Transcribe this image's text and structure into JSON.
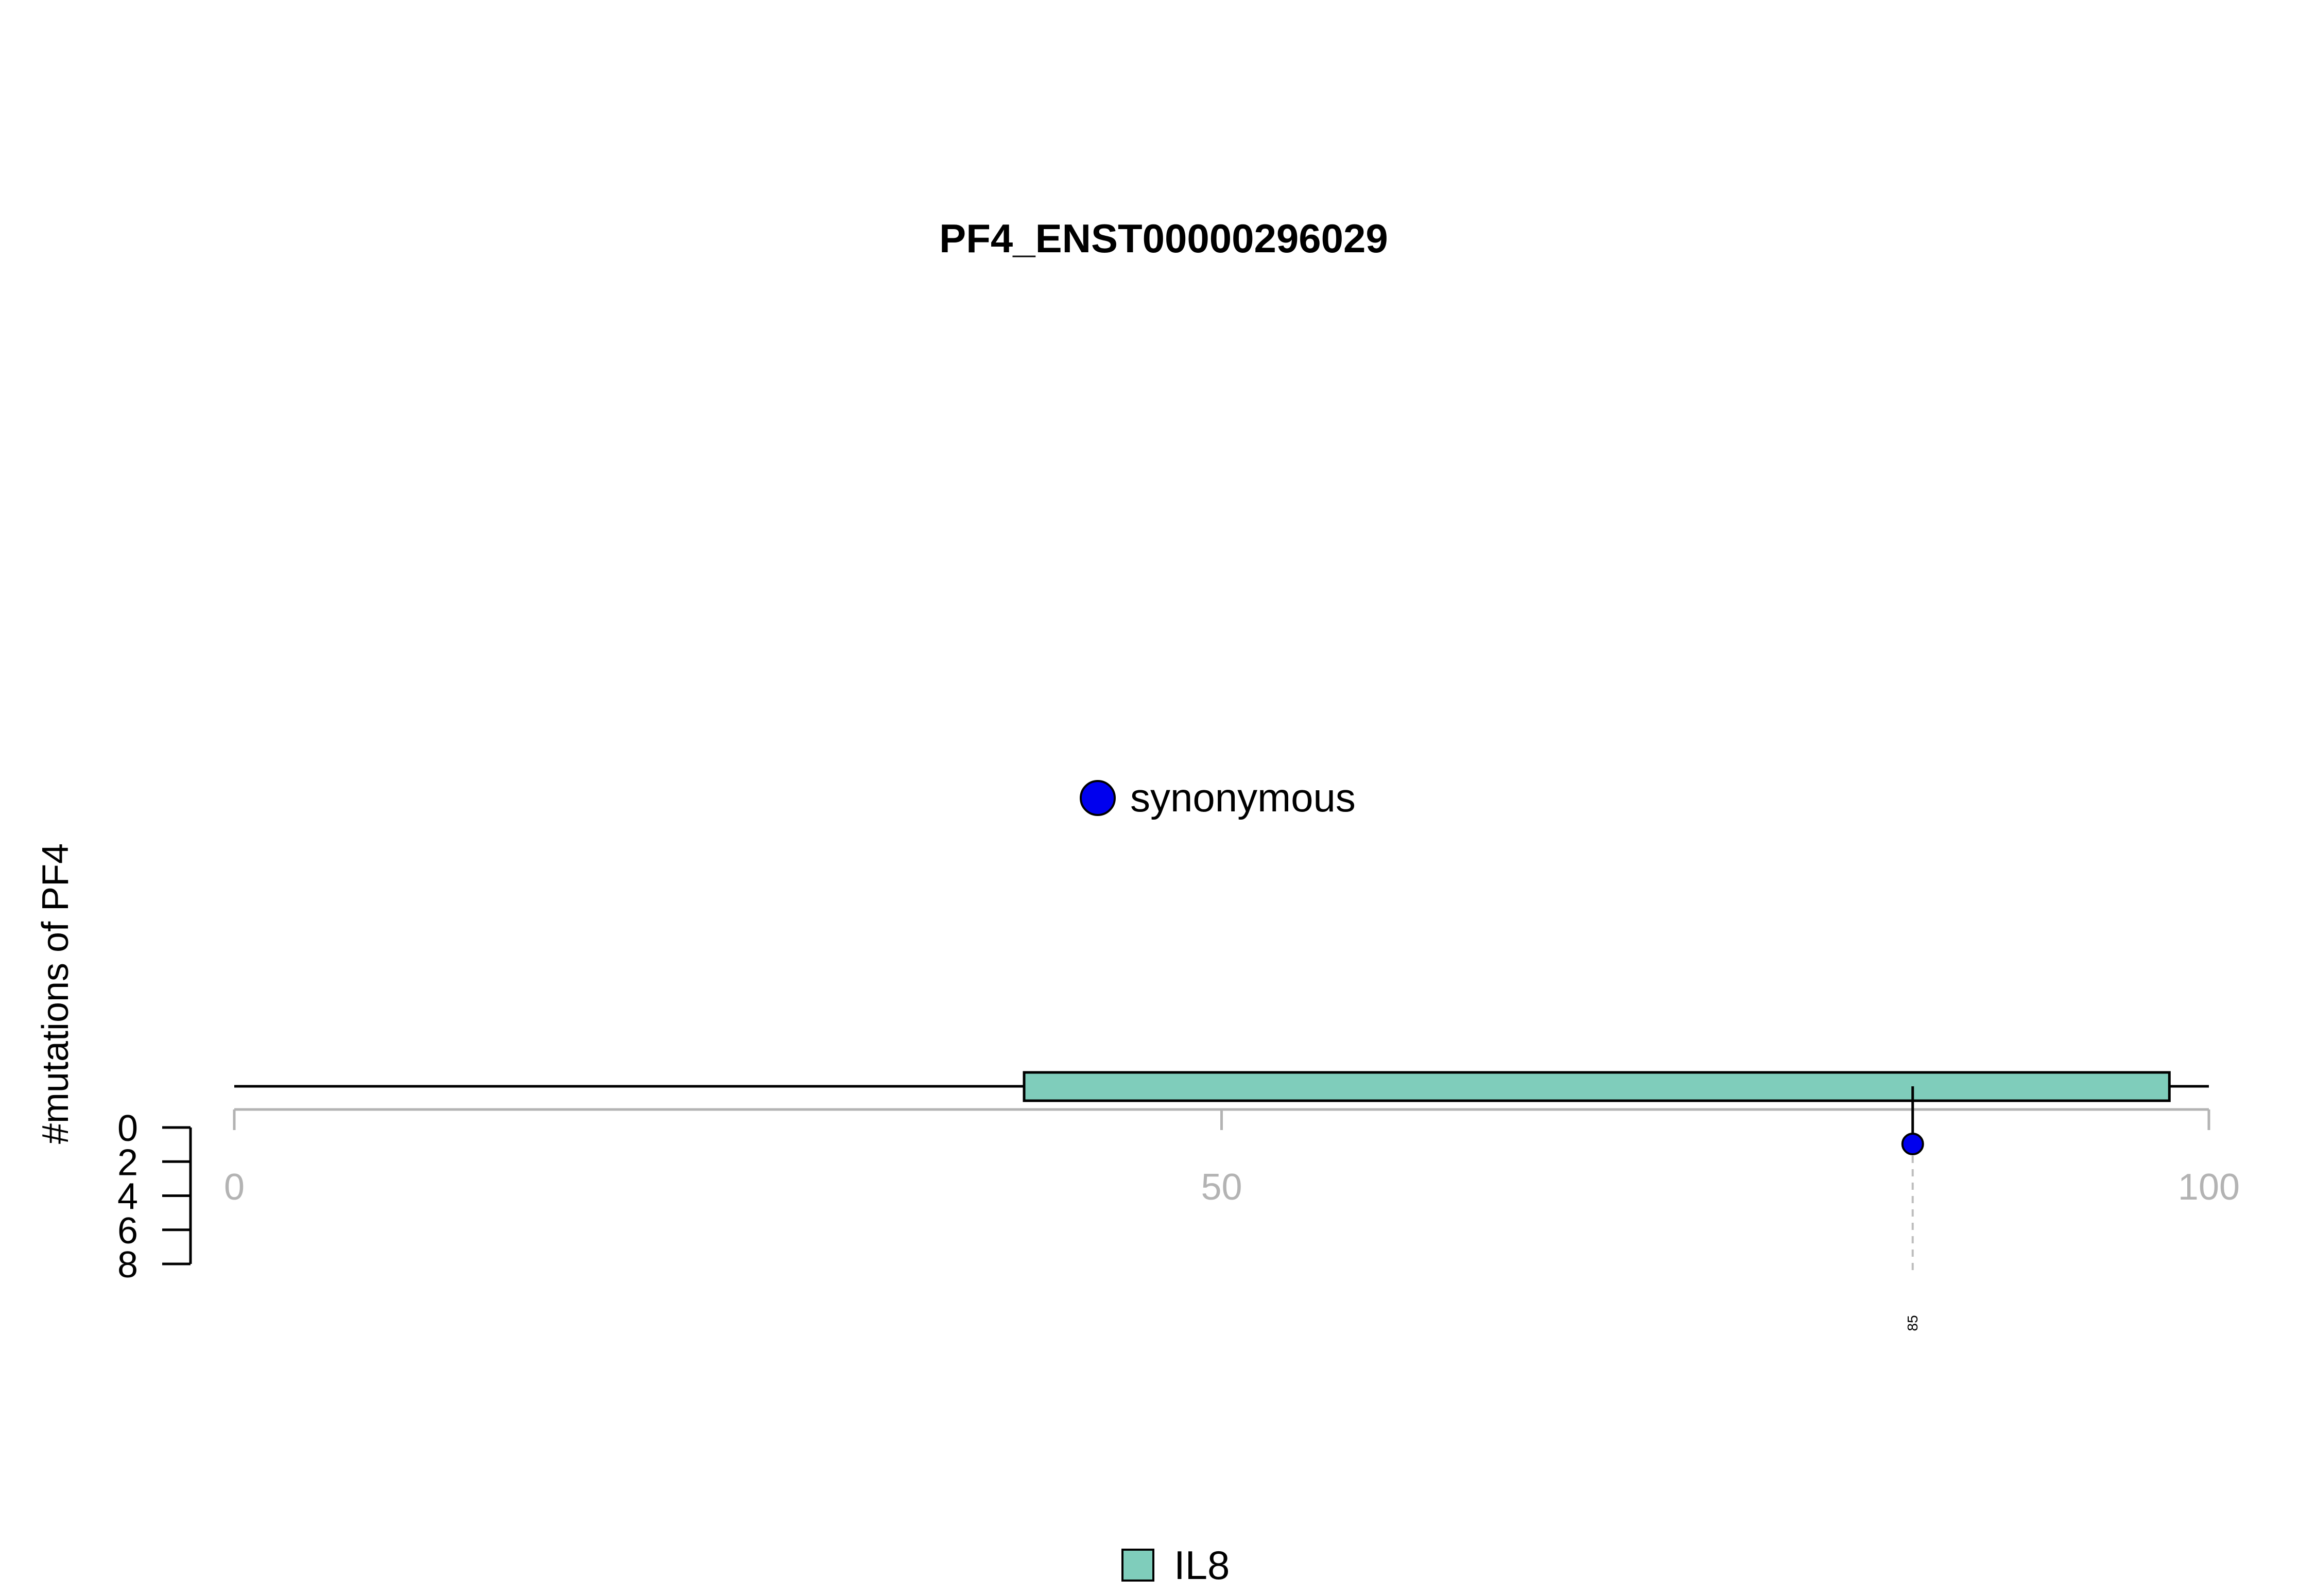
{
  "chart_data": {
    "type": "lollipop",
    "title": "PF4_ENST00000296029",
    "xlim": [
      0,
      100
    ],
    "x_ticks": [
      {
        "value": 0,
        "label": "0"
      },
      {
        "value": 50,
        "label": "50"
      },
      {
        "value": 100,
        "label": "100"
      }
    ],
    "ylabel": "#mutations of PF4",
    "ylim": [
      0,
      8
    ],
    "y_ticks": [
      {
        "value": 0,
        "label": "0"
      },
      {
        "value": 2,
        "label": "2"
      },
      {
        "value": 4,
        "label": "4"
      },
      {
        "value": 6,
        "label": "6"
      },
      {
        "value": 8,
        "label": "8"
      }
    ],
    "domains": [
      {
        "name": "IL8",
        "start": 40,
        "end": 98,
        "color": "#7fcdbb"
      }
    ],
    "mutations": [
      {
        "position": 85,
        "label": "85",
        "count": 1,
        "type": "synonymous",
        "color": "#0000ee"
      }
    ],
    "mutation_legend": [
      {
        "label": "synonymous",
        "color": "#0000ee"
      }
    ],
    "domain_legend": [
      {
        "label": "IL8",
        "color": "#7fcdbb"
      }
    ]
  }
}
